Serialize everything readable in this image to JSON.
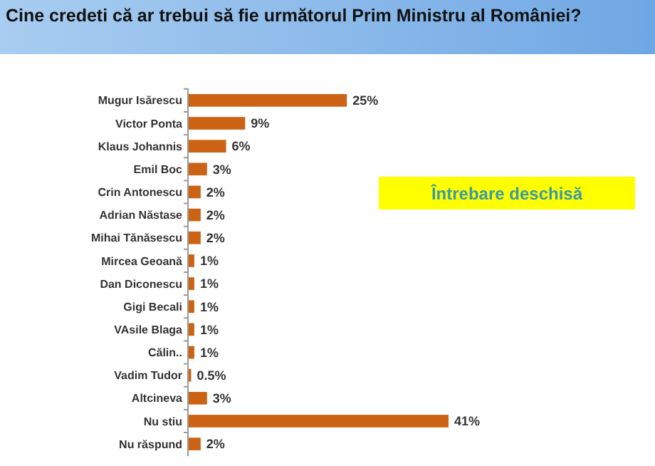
{
  "chart_data": {
    "type": "bar",
    "orientation": "horizontal",
    "title": "Cine credeti că ar trebui să fie următorul Prim Ministru al României?",
    "categories": [
      "Mugur Isărescu",
      "Victor Ponta",
      "Klaus Johannis",
      "Emil Boc",
      "Crin Antonescu",
      "Adrian Năstase",
      "Mihai Tănăsescu",
      "Mircea Geoană",
      "Dan Diconescu",
      "Gigi Becali",
      "VAsile Blaga",
      "Călin..",
      "Vadim Tudor",
      "Altcineva",
      "Nu stiu",
      "Nu răspund"
    ],
    "values": [
      25,
      9,
      6,
      3,
      2,
      2,
      2,
      1,
      1,
      1,
      1,
      1,
      0.5,
      3,
      41,
      2
    ],
    "value_labels": [
      "25%",
      "9%",
      "6%",
      "3%",
      "2%",
      "2%",
      "2%",
      "1%",
      "1%",
      "1%",
      "1%",
      "1%",
      "0.5%",
      "3%",
      "41%",
      "2%"
    ],
    "color": "#cc6214",
    "annotations": [
      "Întrebare deschisă"
    ]
  }
}
